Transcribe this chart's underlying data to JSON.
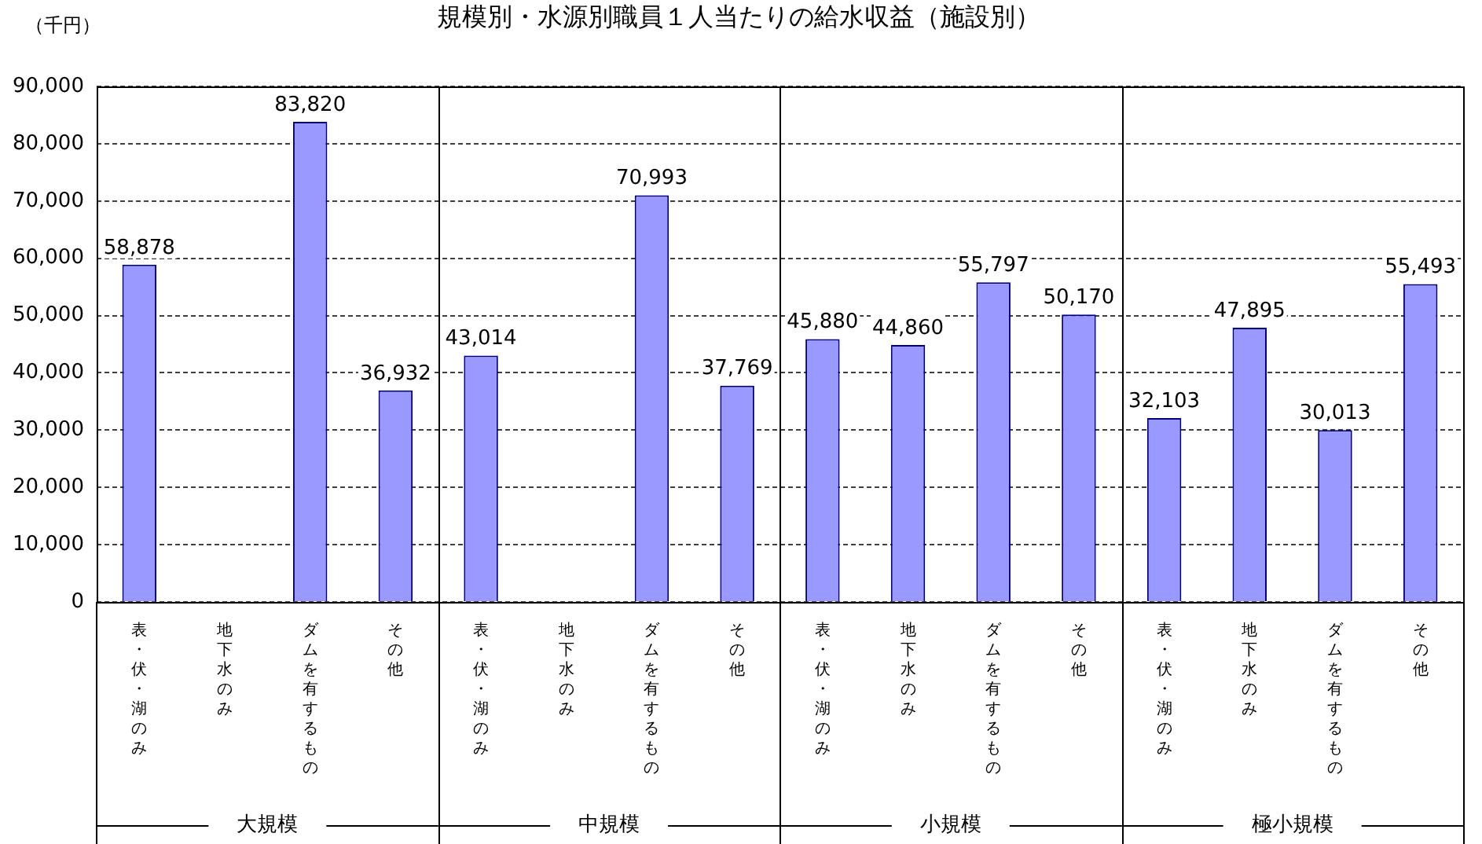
{
  "chart_data": {
    "type": "bar",
    "title": "規模別・水源別職員１人当たりの給水収益（施設別）",
    "ylabel": "（千円）",
    "categories": [
      "表・伏・湖のみ",
      "地下水のみ",
      "ダムを有するもの",
      "その他",
      "表・伏・湖のみ",
      "地下水のみ",
      "ダムを有するもの",
      "その他",
      "表・伏・湖のみ",
      "地下水のみ",
      "ダムを有するもの",
      "その他",
      "表・伏・湖のみ",
      "地下水のみ",
      "ダムを有するもの",
      "その他"
    ],
    "values": [
      58878,
      null,
      83820,
      36932,
      43014,
      null,
      70993,
      37769,
      45880,
      44860,
      55797,
      50170,
      32103,
      47895,
      30013,
      55493
    ],
    "value_labels": [
      "58,878",
      null,
      "83,820",
      "36,932",
      "43,014",
      null,
      "70,993",
      "37,769",
      "45,880",
      "44,860",
      "55,797",
      "50,170",
      "32,103",
      "47,895",
      "30,013",
      "55,493"
    ],
    "color": "#9999ff",
    "ylim": [
      0,
      90000
    ],
    "yticks": [
      {
        "value": 0,
        "label": "0"
      },
      {
        "value": 10000,
        "label": "10,000"
      },
      {
        "value": 20000,
        "label": "20,000"
      },
      {
        "value": 30000,
        "label": "30,000"
      },
      {
        "value": 40000,
        "label": "40,000"
      },
      {
        "value": 50000,
        "label": "50,000"
      },
      {
        "value": 60000,
        "label": "60,000"
      },
      {
        "value": 70000,
        "label": "70,000"
      },
      {
        "value": 80000,
        "label": "80,000"
      },
      {
        "value": 90000,
        "label": "90,000"
      }
    ],
    "grid": "y",
    "annotations": [
      "大規模",
      "中規模",
      "小規模",
      "極小規模"
    ]
  }
}
